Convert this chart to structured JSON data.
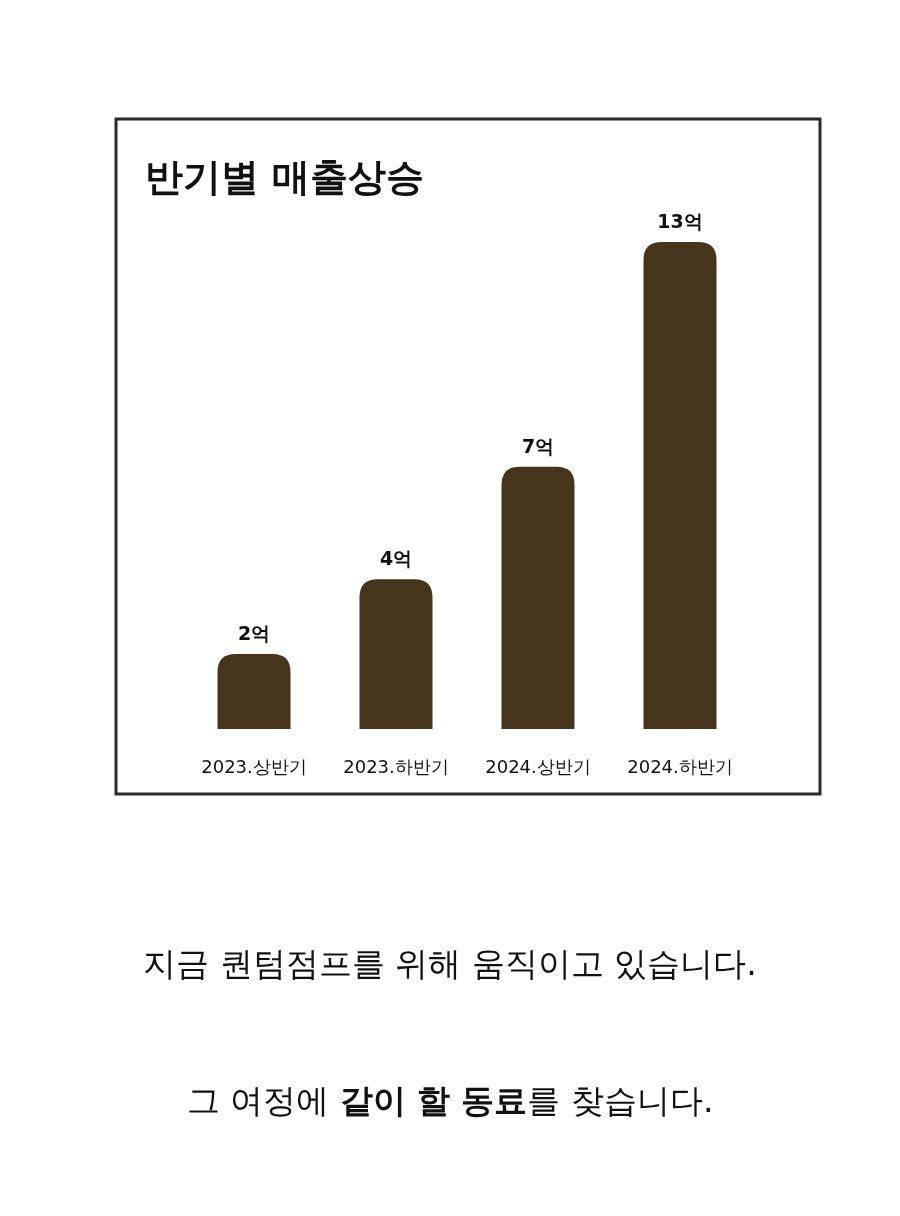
{
  "chart_data": {
    "type": "bar",
    "title": "반기별 매출상승",
    "categories": [
      "2023.상반기",
      "2023.하반기",
      "2024.상반기",
      "2024.하반기"
    ],
    "values": [
      2,
      4,
      7,
      13
    ],
    "value_labels": [
      "2억",
      "4억",
      "7억",
      "13억"
    ],
    "color": "#46351a",
    "annotations": [
      "지금 퀀텀점프를 위해 움직이고 있습니다.",
      "그 여정에 **같이 할 동료**를 찾습니다."
    ]
  }
}
